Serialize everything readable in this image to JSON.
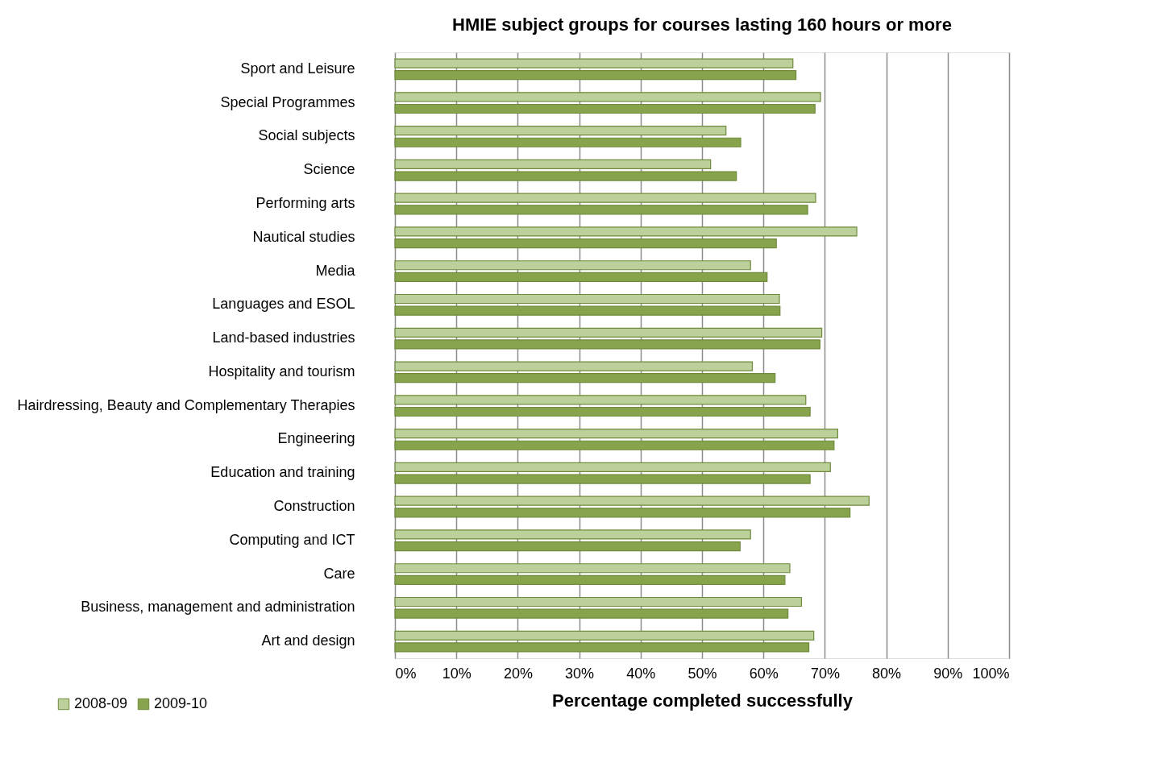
{
  "chart_data": {
    "type": "bar",
    "orientation": "horizontal",
    "title": "HMIE subject groups for courses lasting 160 hours or more",
    "xlabel": "Percentage completed successfully",
    "categories": [
      "Sport and Leisure",
      "Special Programmes",
      "Social subjects",
      "Science",
      "Performing arts",
      "Nautical studies",
      "Media",
      "Languages and ESOL",
      "Land-based industries",
      "Hospitality and tourism",
      "Hairdressing, Beauty and Complementary Therapies",
      "Engineering",
      "Education and training",
      "Construction",
      "Computing and ICT",
      "Care",
      "Business, management and administration",
      "Art and design"
    ],
    "series": [
      {
        "name": "2008-09",
        "color": "#bbd09a",
        "values": [
          64.8,
          69.3,
          53.9,
          51.4,
          68.5,
          75.2,
          57.9,
          62.6,
          69.5,
          58.2,
          66.9,
          72.1,
          70.9,
          77.2,
          57.9,
          64.3,
          66.2,
          68.2
        ]
      },
      {
        "name": "2009-10",
        "color": "#87a34b",
        "values": [
          65.3,
          68.4,
          56.3,
          55.6,
          67.2,
          62.1,
          60.6,
          62.7,
          69.2,
          61.9,
          67.6,
          71.5,
          67.6,
          74.1,
          56.2,
          63.5,
          64.0,
          67.4
        ]
      }
    ],
    "xlim": [
      0,
      100
    ],
    "xticks": [
      {
        "value": 0,
        "label": "0%"
      },
      {
        "value": 10,
        "label": "10%"
      },
      {
        "value": 20,
        "label": "20%"
      },
      {
        "value": 30,
        "label": "30%"
      },
      {
        "value": 40,
        "label": "40%"
      },
      {
        "value": 50,
        "label": "50%"
      },
      {
        "value": 60,
        "label": "60%"
      },
      {
        "value": 70,
        "label": "70%"
      },
      {
        "value": 80,
        "label": "80%"
      },
      {
        "value": 90,
        "label": "90%"
      },
      {
        "value": 100,
        "label": "100%"
      }
    ],
    "grid": "x",
    "legend": "bottom left"
  }
}
